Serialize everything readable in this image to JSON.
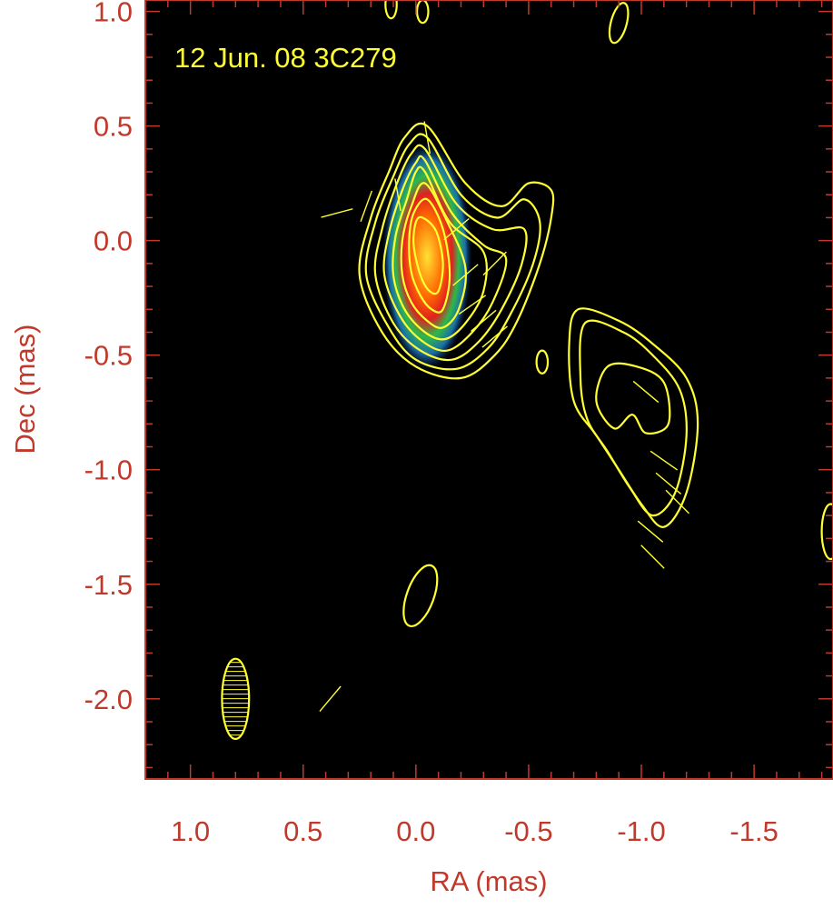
{
  "chart_data": {
    "type": "contour",
    "panel_label": "12 Jun. 08  3C279",
    "xlabel": "RA (mas)",
    "ylabel": "Dec (mas)",
    "xlim": [
      1.2,
      -1.85
    ],
    "ylim": [
      -2.35,
      1.05
    ],
    "x_ticks": [
      1.0,
      0.5,
      0.0,
      -0.5,
      -1.0,
      -1.5
    ],
    "x_tick_labels": [
      "1.0",
      "0.5",
      "0.0",
      "-0.5",
      "-1.0",
      "-1.5"
    ],
    "y_ticks": [
      1.0,
      0.5,
      0.0,
      -0.5,
      -1.0,
      -1.5,
      -2.0
    ],
    "y_tick_labels": [
      "1.0",
      "0.5",
      "0.0",
      "-0.5",
      "-1.0",
      "-1.5",
      "-2.0"
    ],
    "background": "#000000",
    "contour_color": "#ffff33",
    "axis_color": "#c0392b",
    "colormap": "rainbow",
    "core": {
      "ra": -0.05,
      "dec": 0.0,
      "contours": [
        {
          "ra": [
            0.12,
            0.2,
            0.25,
            0.15,
            0.0,
            -0.2,
            -0.35,
            -0.45,
            -0.55,
            -0.6,
            -0.6,
            -0.5,
            -0.38,
            -0.22,
            -0.05,
            0.05,
            0.12
          ],
          "dec": [
            0.3,
            0.1,
            -0.15,
            -0.4,
            -0.55,
            -0.6,
            -0.5,
            -0.35,
            -0.1,
            0.1,
            0.22,
            0.25,
            0.15,
            0.25,
            0.5,
            0.45,
            0.3
          ]
        },
        {
          "ra": [
            0.1,
            0.18,
            0.22,
            0.12,
            0.0,
            -0.18,
            -0.32,
            -0.42,
            -0.52,
            -0.55,
            -0.48,
            -0.36,
            -0.2,
            -0.05,
            0.03,
            0.1
          ],
          "dec": [
            0.28,
            0.08,
            -0.15,
            -0.38,
            -0.52,
            -0.56,
            -0.47,
            -0.32,
            -0.1,
            0.08,
            0.18,
            0.1,
            0.2,
            0.45,
            0.42,
            0.28
          ]
        },
        {
          "ra": [
            0.08,
            0.15,
            0.18,
            0.1,
            -0.02,
            -0.16,
            -0.28,
            -0.38,
            -0.47,
            -0.48,
            -0.34,
            -0.18,
            -0.04,
            0.02,
            0.08
          ],
          "dec": [
            0.26,
            0.05,
            -0.15,
            -0.36,
            -0.48,
            -0.52,
            -0.44,
            -0.3,
            -0.1,
            0.05,
            0.05,
            0.16,
            0.4,
            0.38,
            0.26
          ]
        },
        {
          "ra": [
            0.06,
            0.12,
            0.14,
            0.07,
            -0.03,
            -0.14,
            -0.25,
            -0.34,
            -0.4,
            -0.3,
            -0.16,
            -0.04,
            0.0,
            0.06
          ],
          "dec": [
            0.22,
            0.03,
            -0.15,
            -0.33,
            -0.44,
            -0.48,
            -0.4,
            -0.27,
            -0.08,
            -0.02,
            0.12,
            0.35,
            0.34,
            0.22
          ]
        },
        {
          "ra": [
            0.04,
            0.09,
            0.1,
            0.05,
            -0.04,
            -0.13,
            -0.22,
            -0.3,
            -0.3,
            -0.15,
            -0.04,
            0.0,
            0.04
          ],
          "dec": [
            0.18,
            0.02,
            -0.15,
            -0.3,
            -0.4,
            -0.43,
            -0.36,
            -0.22,
            -0.05,
            0.08,
            0.3,
            0.3,
            0.18
          ]
        },
        {
          "ra": [
            0.02,
            0.06,
            0.06,
            0.02,
            -0.05,
            -0.12,
            -0.19,
            -0.22,
            -0.14,
            -0.04,
            0.02
          ],
          "dec": [
            0.15,
            0.0,
            -0.15,
            -0.27,
            -0.35,
            -0.38,
            -0.3,
            -0.12,
            0.08,
            0.25,
            0.15
          ]
        },
        {
          "ra": [
            0.01,
            0.03,
            0.02,
            -0.02,
            -0.07,
            -0.12,
            -0.15,
            -0.12,
            -0.05,
            0.01
          ],
          "dec": [
            0.12,
            0.0,
            -0.14,
            -0.24,
            -0.3,
            -0.3,
            -0.15,
            0.05,
            0.18,
            0.12
          ]
        },
        {
          "ra": [
            0.0,
            0.01,
            -0.02,
            -0.06,
            -0.1,
            -0.12,
            -0.09,
            -0.03,
            0.0
          ],
          "dec": [
            0.08,
            -0.02,
            -0.15,
            -0.22,
            -0.22,
            -0.1,
            0.04,
            0.1,
            0.08
          ]
        }
      ]
    },
    "jet_component": {
      "contours": [
        {
          "ra": [
            -0.72,
            -0.9,
            -1.05,
            -1.2,
            -1.25,
            -1.2,
            -1.1,
            -1.0,
            -0.9,
            -0.8,
            -0.7,
            -0.68,
            -0.72
          ],
          "dec": [
            -0.3,
            -0.35,
            -0.45,
            -0.6,
            -0.8,
            -1.1,
            -1.25,
            -1.15,
            -1.0,
            -0.85,
            -0.7,
            -0.45,
            -0.3
          ]
        },
        {
          "ra": [
            -0.75,
            -0.92,
            -1.05,
            -1.17,
            -1.2,
            -1.15,
            -1.05,
            -0.95,
            -0.85,
            -0.76,
            -0.73,
            -0.75
          ],
          "dec": [
            -0.36,
            -0.4,
            -0.5,
            -0.65,
            -0.85,
            -1.1,
            -1.2,
            -1.08,
            -0.92,
            -0.78,
            -0.6,
            -0.36
          ]
        },
        {
          "ra": [
            -0.85,
            -0.98,
            -1.1,
            -1.12,
            -1.02,
            -0.96,
            -0.88,
            -0.8,
            -0.85
          ],
          "dec": [
            -0.55,
            -0.55,
            -0.62,
            -0.8,
            -0.84,
            -0.76,
            -0.82,
            -0.7,
            -0.55
          ]
        }
      ]
    },
    "isolated_contours": [
      {
        "ra": -0.02,
        "dec": -1.55,
        "w": 0.06,
        "h": 0.14,
        "angle": 20
      },
      {
        "ra": -0.56,
        "dec": -0.53,
        "w": 0.025,
        "h": 0.05,
        "angle": 0
      },
      {
        "ra": 0.11,
        "dec": 1.03,
        "w": 0.025,
        "h": 0.06,
        "angle": 0
      },
      {
        "ra": -0.03,
        "dec": 1.0,
        "w": 0.025,
        "h": 0.05,
        "angle": 0
      },
      {
        "ra": -0.9,
        "dec": 0.95,
        "w": 0.035,
        "h": 0.09,
        "angle": 15
      },
      {
        "ra": -1.84,
        "dec": -1.27,
        "w": 0.04,
        "h": 0.12,
        "angle": 0
      }
    ],
    "evpa_vectors": [
      {
        "ra": 0.22,
        "dec": 0.15,
        "angle": 70
      },
      {
        "ra": 0.08,
        "dec": 0.2,
        "angle": 100
      },
      {
        "ra": -0.05,
        "dec": 0.45,
        "angle": 100
      },
      {
        "ra": -0.18,
        "dec": 0.05,
        "angle": 40
      },
      {
        "ra": -0.22,
        "dec": -0.15,
        "angle": 40
      },
      {
        "ra": -0.25,
        "dec": -0.28,
        "angle": 35
      },
      {
        "ra": -0.3,
        "dec": -0.35,
        "angle": 40
      },
      {
        "ra": -0.35,
        "dec": -0.42,
        "angle": 40
      },
      {
        "ra": -0.35,
        "dec": -0.1,
        "angle": 45
      },
      {
        "ra": -1.02,
        "dec": -0.66,
        "angle": -40
      },
      {
        "ra": -1.1,
        "dec": -0.96,
        "angle": -35
      },
      {
        "ra": -1.12,
        "dec": -1.06,
        "angle": -40
      },
      {
        "ra": -1.16,
        "dec": -1.14,
        "angle": -45
      },
      {
        "ra": -1.04,
        "dec": -1.27,
        "angle": -40
      },
      {
        "ra": -1.05,
        "dec": -1.38,
        "angle": -45
      },
      {
        "ra": 0.38,
        "dec": -2.0,
        "angle": 50
      },
      {
        "ra": 0.35,
        "dec": 0.12,
        "angle": 15
      }
    ],
    "beam": {
      "ra": 0.8,
      "dec": -2.0,
      "major": 0.35,
      "minor": 0.12,
      "pa": 0
    }
  }
}
